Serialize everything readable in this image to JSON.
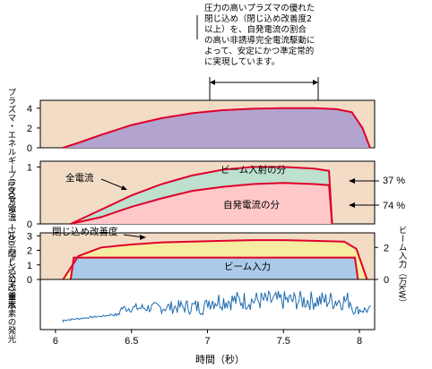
{
  "annotation": {
    "lines": [
      "圧力の高いプラズマの優れた",
      "閉じ込め（閉じ込め改善度2",
      "以上）を、自発電流の割合",
      "の高い非誘導完全電流駆動に",
      "よって、安定にかつ準定常的",
      "に実現しています。"
    ],
    "span": [
      7.0,
      7.7
    ]
  },
  "chart_data": {
    "type": "area",
    "x_label": "時間（秒）",
    "x_range": [
      5.9,
      8.1
    ],
    "x_ticks": [
      6,
      6.5,
      7,
      7.5,
      8
    ],
    "x_tick_labels": [
      "6",
      "6.5",
      "7",
      "7.5",
      "8"
    ],
    "panels": [
      {
        "id": "energy",
        "ylabel": "プラズマ・エネルギー（100万ジュール）",
        "ylim": [
          0,
          4.8
        ],
        "y_ticks": [
          0,
          2,
          4
        ],
        "fill": "#b3a3cf",
        "series": [
          {
            "name": "プラズマ・エネルギー",
            "x": [
              6.05,
              6.15,
              6.3,
              6.5,
              6.7,
              6.9,
              7.1,
              7.3,
              7.5,
              7.7,
              7.85,
              7.95,
              8.02,
              8.07
            ],
            "values": [
              0,
              0.5,
              1.3,
              2.3,
              3.0,
              3.5,
              3.8,
              3.95,
              4.0,
              4.0,
              3.9,
              3.6,
              2.0,
              0
            ]
          }
        ]
      },
      {
        "id": "current",
        "ylabel": "プラズマ電流（100万アンペア）",
        "ylim": [
          0,
          1.1
        ],
        "y_ticks": [
          0,
          1
        ],
        "series": [
          {
            "name": "全電流",
            "fill": "#bde0cf",
            "x": [
              6.1,
              6.3,
              6.5,
              6.7,
              6.9,
              7.1,
              7.3,
              7.5,
              7.7,
              7.8,
              7.82
            ],
            "values": [
              0,
              0.25,
              0.5,
              0.7,
              0.85,
              0.95,
              1.0,
              1.0,
              0.97,
              0.93,
              0
            ]
          },
          {
            "name": "自発電流の分",
            "fill": "#ffc9c9",
            "x": [
              6.1,
              6.3,
              6.5,
              6.7,
              6.9,
              7.1,
              7.3,
              7.5,
              7.7,
              7.8,
              7.82
            ],
            "values": [
              0,
              0.12,
              0.3,
              0.45,
              0.58,
              0.65,
              0.7,
              0.72,
              0.7,
              0.68,
              0
            ]
          }
        ],
        "region_labels": [
          "ビーム入射の分",
          "自発電流の分"
        ],
        "arrow_labels": [
          "全電流"
        ],
        "right_annotations": [
          "37 %",
          "74 %"
        ]
      },
      {
        "id": "confinement",
        "ylabel_left": "閉じ込め改善度",
        "ylabel_right": "ビーム入力（万kW）",
        "ylim": [
          0,
          3.2
        ],
        "y_ticks": [
          0,
          1,
          2,
          3
        ],
        "right_ticks": [
          "2",
          "0"
        ],
        "region_labels": [
          "閉じ込め改善度",
          "ビーム入力"
        ],
        "series": [
          {
            "name": "閉じ込め改善度",
            "fill": "#f7eda0",
            "x": [
              6.05,
              6.15,
              6.3,
              6.5,
              6.7,
              6.9,
              7.1,
              7.3,
              7.5,
              7.7,
              7.9,
              7.98,
              8.05
            ],
            "values": [
              0,
              1.6,
              2.2,
              2.4,
              2.55,
              2.6,
              2.65,
              2.7,
              2.7,
              2.65,
              2.6,
              2.1,
              0
            ]
          },
          {
            "name": "ビーム入力",
            "fill": "#a9cbe9",
            "x": [
              6.1,
              6.12,
              7.97,
              7.99
            ],
            "values": [
              0,
              1.5,
              1.5,
              0
            ]
          }
        ]
      },
      {
        "id": "emission",
        "ylabel": "重水素の発光",
        "fill": "#ffffff",
        "line_color": "#1f6bb0"
      }
    ]
  }
}
